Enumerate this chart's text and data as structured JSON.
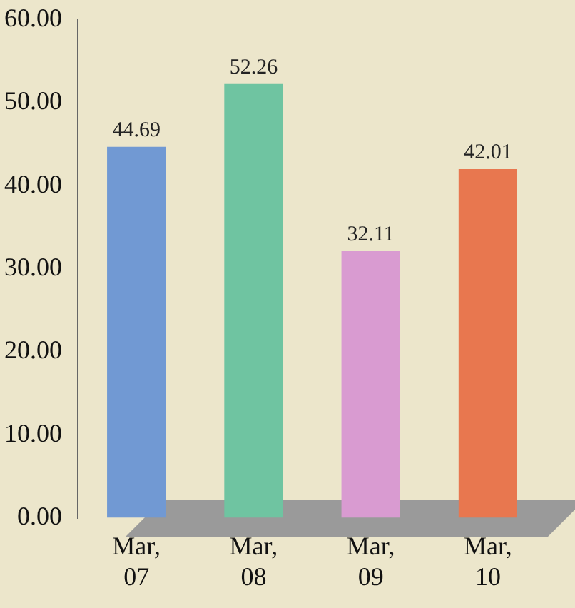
{
  "chart_data": {
    "type": "bar",
    "categories": [
      "Mar, 07",
      "Mar, 08",
      "Mar, 09",
      "Mar, 10"
    ],
    "values": [
      44.69,
      52.26,
      32.11,
      42.01
    ],
    "colors": [
      "#7199d3",
      "#6fc4a1",
      "#d99bd1",
      "#e8774f"
    ],
    "ylim": [
      0,
      60
    ],
    "yticks": [
      {
        "value": 0,
        "label": "0.00"
      },
      {
        "value": 10,
        "label": "10.00"
      },
      {
        "value": 20,
        "label": "20.00"
      },
      {
        "value": 30,
        "label": "30.00"
      },
      {
        "value": 40,
        "label": "40.00"
      },
      {
        "value": 50,
        "label": "50.00"
      },
      {
        "value": 60,
        "label": "60.00"
      }
    ],
    "data_labels": true,
    "grid": false,
    "legend": false
  }
}
